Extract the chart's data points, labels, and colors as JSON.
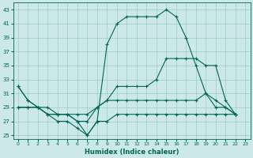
{
  "xlabel": "Humidex (Indice chaleur)",
  "background_color": "#cce8e8",
  "grid_color": "#99cccc",
  "line_color": "#006655",
  "xlim": [
    -0.5,
    23.5
  ],
  "ylim": [
    24.5,
    44.0
  ],
  "xticks": [
    0,
    1,
    2,
    3,
    4,
    5,
    6,
    7,
    8,
    9,
    10,
    11,
    12,
    13,
    14,
    15,
    16,
    17,
    18,
    19,
    20,
    21,
    22,
    23
  ],
  "yticks": [
    25,
    27,
    29,
    31,
    33,
    35,
    37,
    39,
    41,
    43
  ],
  "series1_x": [
    0,
    1,
    2,
    3,
    4,
    5,
    6,
    7,
    8,
    9,
    10,
    11,
    12,
    13,
    14,
    15,
    16,
    17,
    18,
    19,
    20,
    21,
    22
  ],
  "series1_y": [
    32,
    30,
    29,
    28,
    28,
    28,
    27,
    25,
    27,
    38,
    41,
    42,
    42,
    42,
    42,
    43,
    42,
    39,
    35,
    31,
    30,
    29,
    28
  ],
  "series2_x": [
    0,
    1,
    2,
    3,
    4,
    5,
    6,
    7,
    8,
    9,
    10,
    11,
    12,
    13,
    14,
    15,
    16,
    17,
    18,
    19,
    20,
    21,
    22
  ],
  "series2_y": [
    32,
    30,
    29,
    28,
    28,
    28,
    27,
    27,
    29,
    30,
    32,
    32,
    32,
    32,
    33,
    36,
    36,
    36,
    36,
    35,
    35,
    30,
    28
  ],
  "series3_x": [
    0,
    1,
    2,
    3,
    4,
    5,
    6,
    7,
    8,
    9,
    10,
    11,
    12,
    13,
    14,
    15,
    16,
    17,
    18,
    19,
    20,
    21,
    22
  ],
  "series3_y": [
    29,
    29,
    29,
    29,
    28,
    28,
    28,
    28,
    29,
    30,
    30,
    30,
    30,
    30,
    30,
    30,
    30,
    30,
    30,
    31,
    29,
    29,
    28
  ],
  "series4_x": [
    0,
    1,
    2,
    3,
    4,
    5,
    6,
    7,
    8,
    9,
    10,
    11,
    12,
    13,
    14,
    15,
    16,
    17,
    18,
    19,
    20,
    21,
    22
  ],
  "series4_y": [
    29,
    29,
    29,
    28,
    27,
    27,
    26,
    25,
    27,
    27,
    28,
    28,
    28,
    28,
    28,
    28,
    28,
    28,
    28,
    28,
    28,
    28,
    28
  ]
}
